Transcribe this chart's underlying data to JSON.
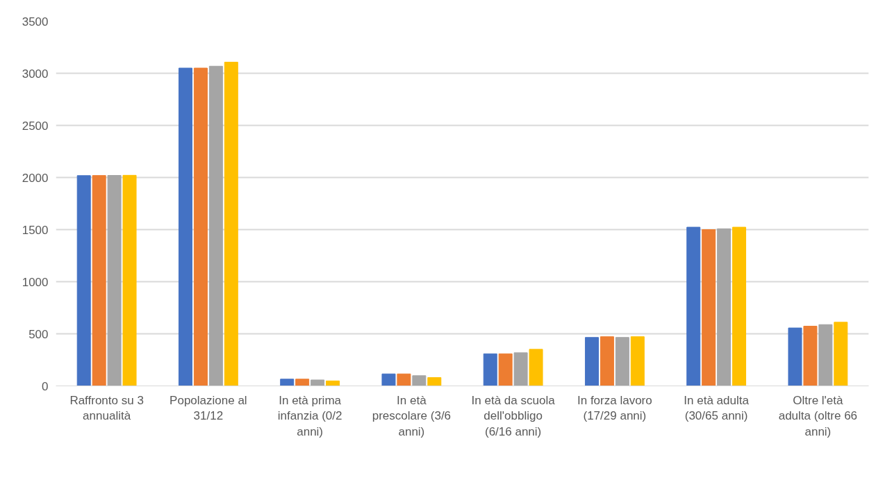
{
  "chart_data": {
    "type": "bar",
    "categories": [
      "Raffronto su 3 annualità",
      "Popolazione al 31/12",
      "In età prima infanzia (0/2 anni)",
      "In età prescolare (3/6 anni)",
      "In età da scuola dell'obbligo (6/16 anni)",
      "In forza lavoro (17/29 anni)",
      "In età adulta (30/65 anni)",
      "Oltre l'età adulta (oltre 66 anni)"
    ],
    "series": [
      {
        "color": "#4472c4",
        "values": [
          2018,
          3050,
          65,
          115,
          308,
          465,
          1523,
          556
        ]
      },
      {
        "color": "#ed7d31",
        "values": [
          2019,
          3050,
          65,
          115,
          308,
          472,
          1500,
          573
        ]
      },
      {
        "color": "#a5a5a5",
        "values": [
          2020,
          3068,
          57,
          98,
          318,
          465,
          1508,
          588
        ]
      },
      {
        "color": "#ffc000",
        "values": [
          2021,
          3107,
          48,
          80,
          351,
          472,
          1523,
          611
        ]
      }
    ],
    "ylim": [
      0,
      3500
    ],
    "yticks": [
      0,
      500,
      1000,
      1500,
      2000,
      2500,
      3000,
      3500
    ],
    "grid": "y"
  }
}
